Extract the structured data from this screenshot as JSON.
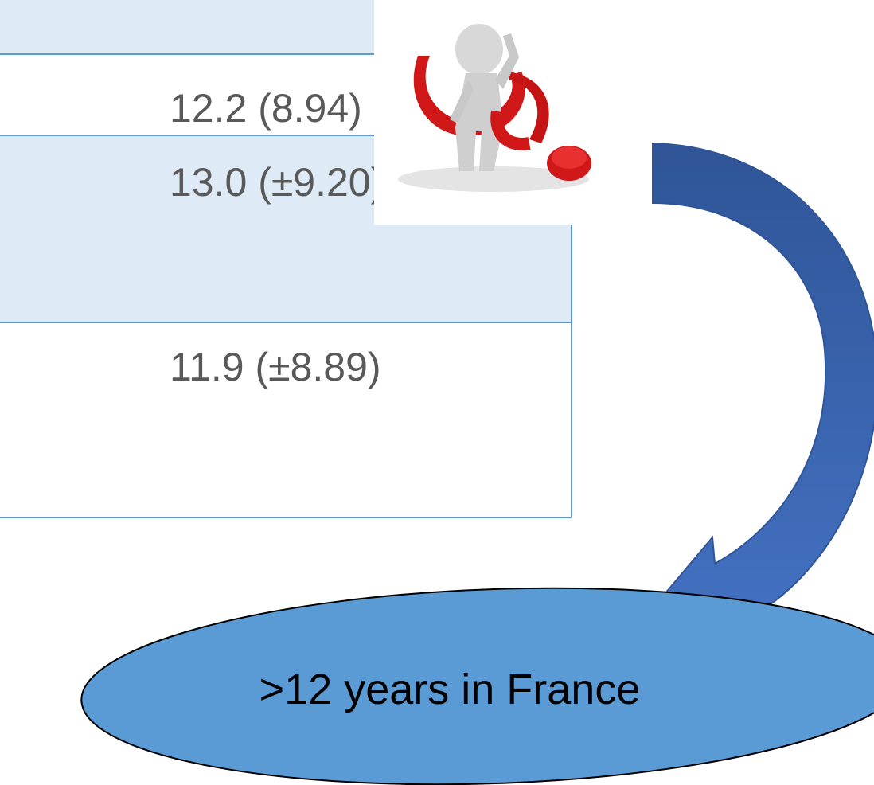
{
  "table": {
    "rows": [
      [
        "12.2 (8.94)"
      ],
      [
        "13.0 (±9.20)"
      ],
      [
        "11.9 (±8.89)"
      ]
    ]
  },
  "ellipse": {
    "label": ">12 years in France"
  }
}
